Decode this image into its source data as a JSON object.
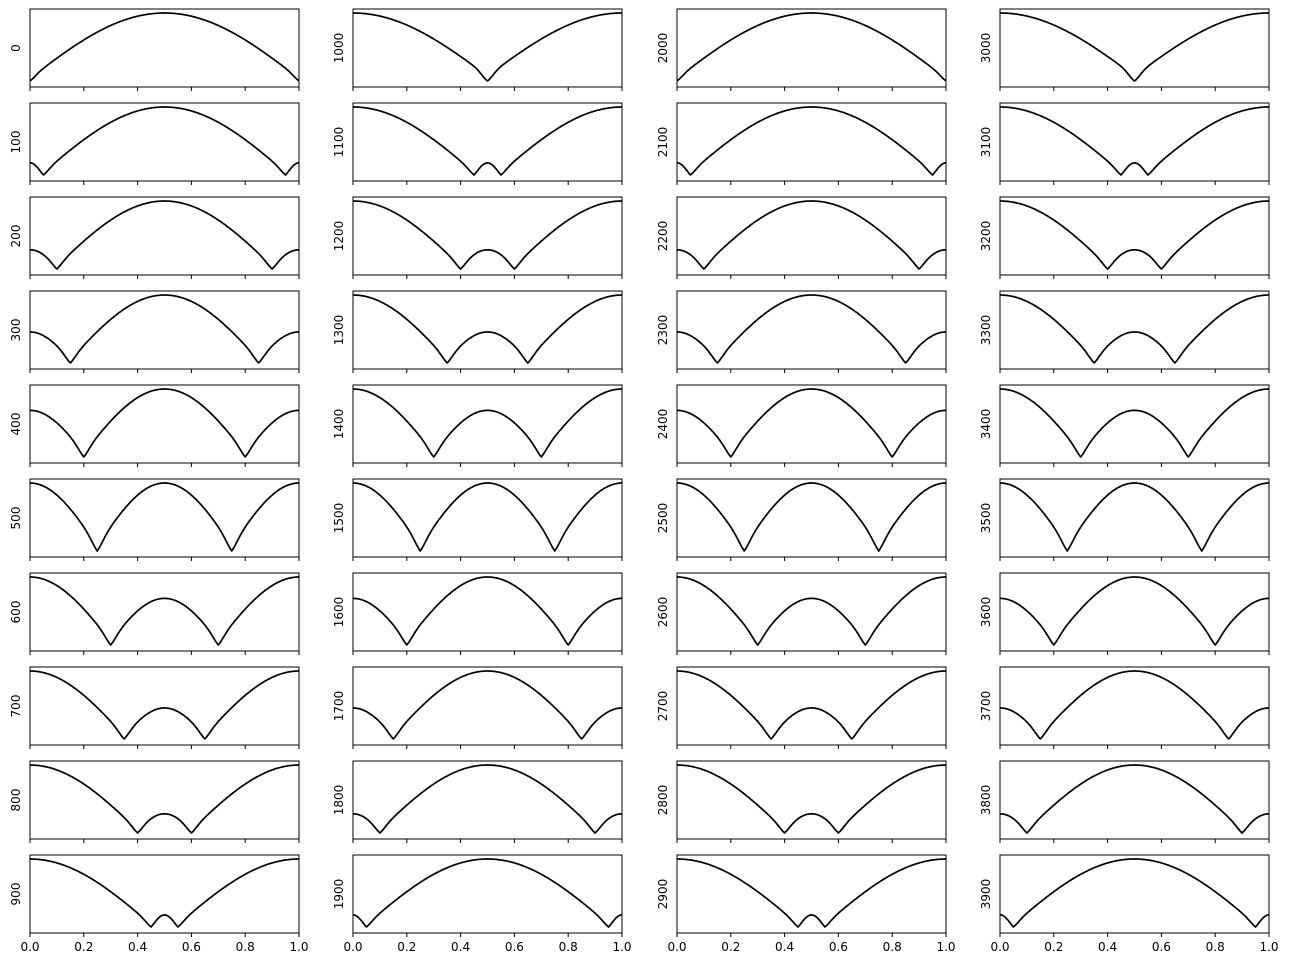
{
  "chart_data": {
    "type": "line",
    "layout": "grid",
    "rows": 10,
    "cols": 4,
    "xlim": [
      0,
      1
    ],
    "x_ticks": [
      0,
      0.2,
      0.4,
      0.6,
      0.8,
      1
    ],
    "x_tick_labels": [
      "0.0",
      "0.2",
      "0.4",
      "0.6",
      "0.8",
      "1.0"
    ],
    "line_color": "#000000",
    "panels": [
      {
        "label": "0",
        "dip_positions": [
          0.0,
          1.0
        ]
      },
      {
        "label": "100",
        "dip_positions": [
          0.05,
          0.95
        ]
      },
      {
        "label": "200",
        "dip_positions": [
          0.1,
          0.9
        ]
      },
      {
        "label": "300",
        "dip_positions": [
          0.15,
          0.85
        ]
      },
      {
        "label": "400",
        "dip_positions": [
          0.2,
          0.8
        ]
      },
      {
        "label": "500",
        "dip_positions": [
          0.25,
          0.75
        ]
      },
      {
        "label": "600",
        "dip_positions": [
          0.3,
          0.7
        ]
      },
      {
        "label": "700",
        "dip_positions": [
          0.35,
          0.65
        ]
      },
      {
        "label": "800",
        "dip_positions": [
          0.4,
          0.6
        ]
      },
      {
        "label": "900",
        "dip_positions": [
          0.45,
          0.55
        ]
      },
      {
        "label": "1000",
        "dip_positions": [
          0.5,
          0.5
        ]
      },
      {
        "label": "1100",
        "dip_positions": [
          0.45,
          0.55
        ]
      },
      {
        "label": "1200",
        "dip_positions": [
          0.4,
          0.6
        ]
      },
      {
        "label": "1300",
        "dip_positions": [
          0.35,
          0.65
        ]
      },
      {
        "label": "1400",
        "dip_positions": [
          0.3,
          0.7
        ]
      },
      {
        "label": "1500",
        "dip_positions": [
          0.25,
          0.75
        ]
      },
      {
        "label": "1600",
        "dip_positions": [
          0.2,
          0.8
        ]
      },
      {
        "label": "1700",
        "dip_positions": [
          0.15,
          0.85
        ]
      },
      {
        "label": "1800",
        "dip_positions": [
          0.1,
          0.9
        ]
      },
      {
        "label": "1900",
        "dip_positions": [
          0.05,
          0.95
        ]
      },
      {
        "label": "2000",
        "dip_positions": [
          0.0,
          1.0
        ]
      },
      {
        "label": "2100",
        "dip_positions": [
          0.05,
          0.95
        ]
      },
      {
        "label": "2200",
        "dip_positions": [
          0.1,
          0.9
        ]
      },
      {
        "label": "2300",
        "dip_positions": [
          0.15,
          0.85
        ]
      },
      {
        "label": "2400",
        "dip_positions": [
          0.2,
          0.8
        ]
      },
      {
        "label": "2500",
        "dip_positions": [
          0.25,
          0.75
        ]
      },
      {
        "label": "2600",
        "dip_positions": [
          0.3,
          0.7
        ]
      },
      {
        "label": "2700",
        "dip_positions": [
          0.35,
          0.65
        ]
      },
      {
        "label": "2800",
        "dip_positions": [
          0.4,
          0.6
        ]
      },
      {
        "label": "2900",
        "dip_positions": [
          0.45,
          0.55
        ]
      },
      {
        "label": "3000",
        "dip_positions": [
          0.5,
          0.5
        ]
      },
      {
        "label": "3100",
        "dip_positions": [
          0.45,
          0.55
        ]
      },
      {
        "label": "3200",
        "dip_positions": [
          0.4,
          0.6
        ]
      },
      {
        "label": "3300",
        "dip_positions": [
          0.35,
          0.65
        ]
      },
      {
        "label": "3400",
        "dip_positions": [
          0.3,
          0.7
        ]
      },
      {
        "label": "3500",
        "dip_positions": [
          0.25,
          0.75
        ]
      },
      {
        "label": "3600",
        "dip_positions": [
          0.2,
          0.8
        ]
      },
      {
        "label": "3700",
        "dip_positions": [
          0.15,
          0.85
        ]
      },
      {
        "label": "3800",
        "dip_positions": [
          0.1,
          0.9
        ]
      },
      {
        "label": "3900",
        "dip_positions": [
          0.05,
          0.95
        ]
      }
    ]
  }
}
